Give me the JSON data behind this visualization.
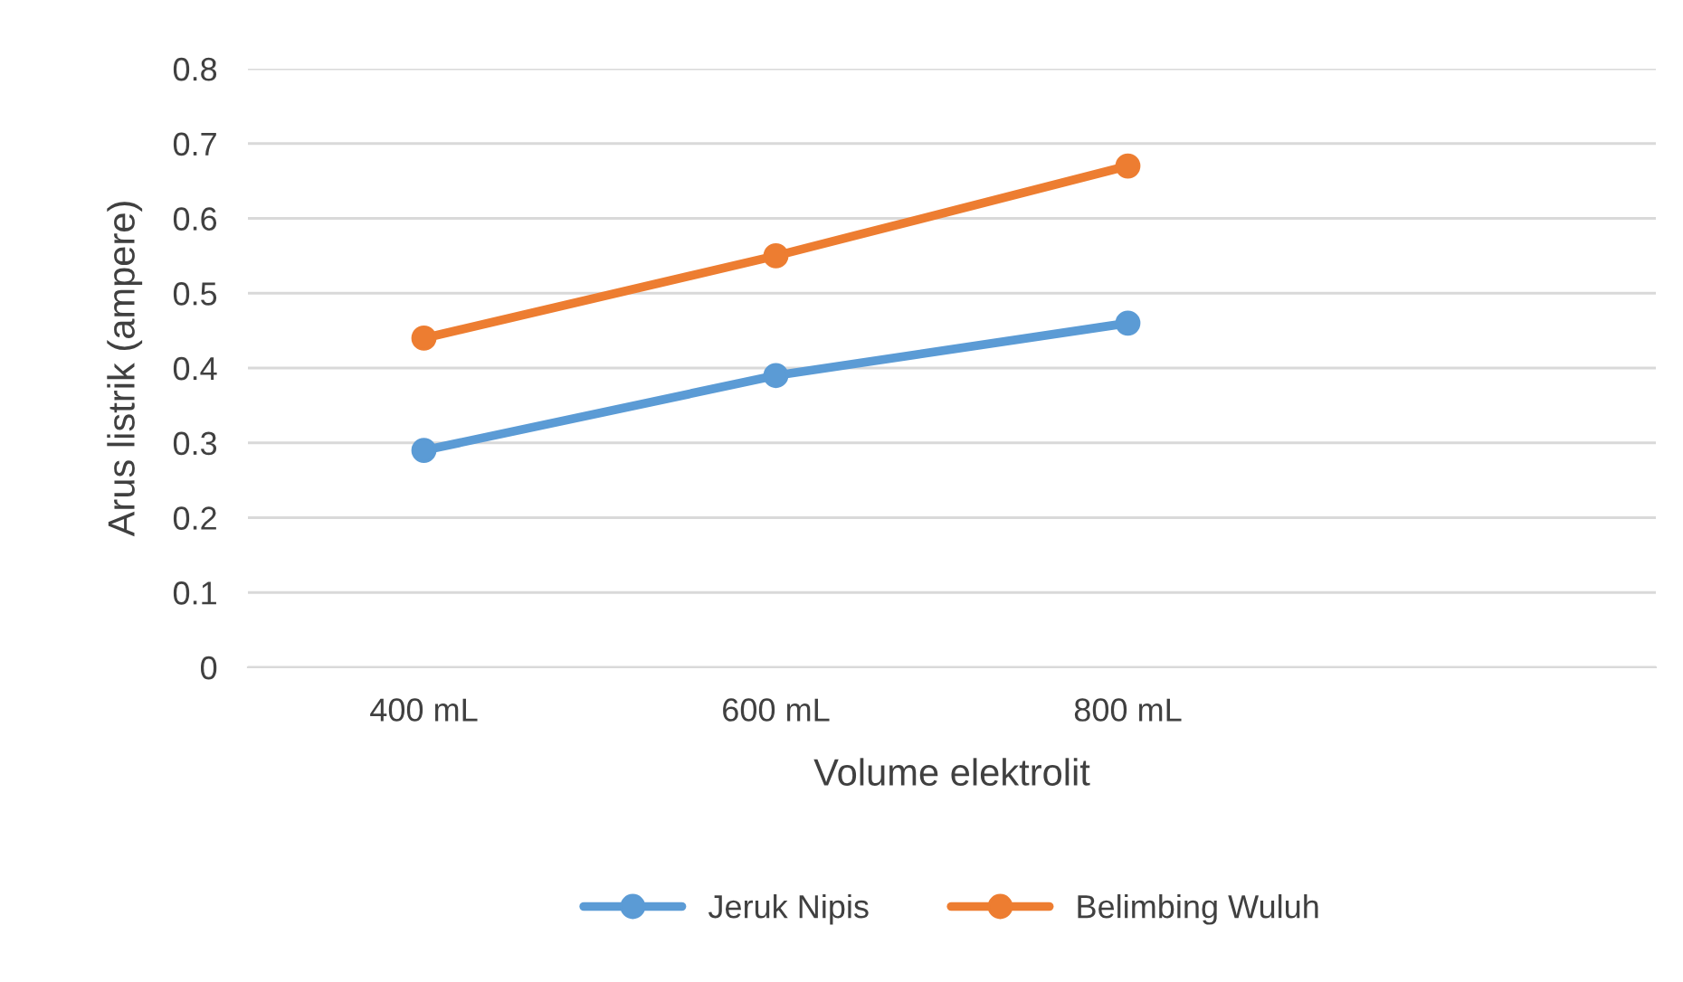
{
  "chart_data": {
    "type": "line",
    "xlabel": "Volume elektrolit",
    "ylabel": "Arus listrik (ampere)",
    "categories": [
      "400 mL",
      "600 mL",
      "800 mL",
      null
    ],
    "series": [
      {
        "name": "Jeruk Nipis",
        "color": "#5b9bd5",
        "values": [
          0.29,
          0.39,
          0.46,
          null
        ]
      },
      {
        "name": "Belimbing Wuluh",
        "color": "#ed7d31",
        "values": [
          0.44,
          0.55,
          0.67,
          null
        ]
      }
    ],
    "ylim": [
      0,
      0.8
    ],
    "yticks": [
      0,
      0.1,
      0.2,
      0.3,
      0.4,
      0.5,
      0.6,
      0.7,
      0.8
    ],
    "grid": "y",
    "legend": "bottom",
    "marker": "circle",
    "line_style": "solid"
  }
}
